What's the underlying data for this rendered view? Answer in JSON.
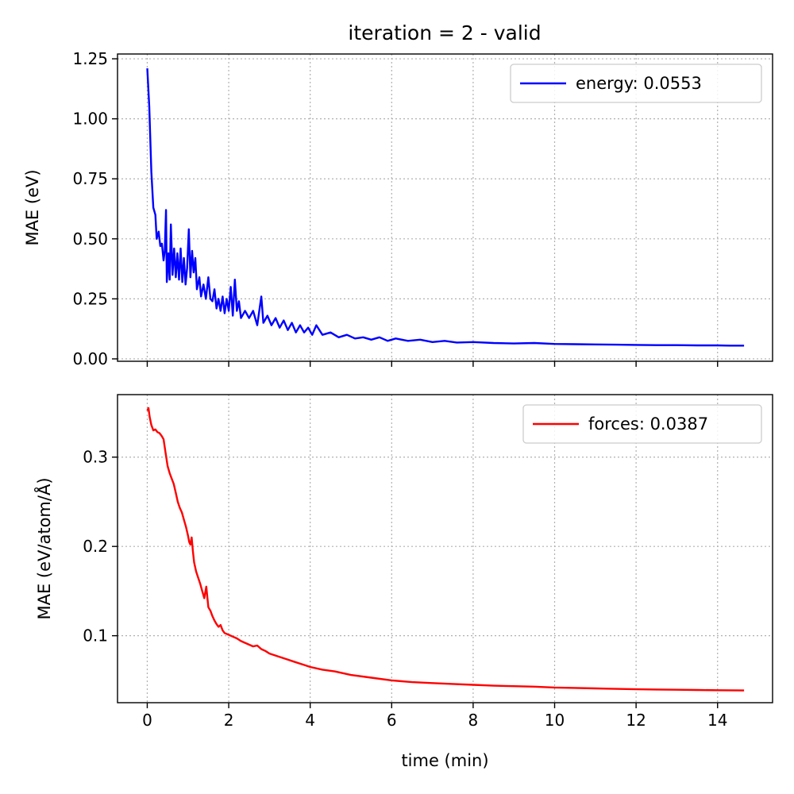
{
  "title": "iteration = 2 - valid",
  "chart_data": [
    {
      "type": "line",
      "title": "iteration = 2 - valid",
      "xlabel": "",
      "ylabel": "MAE (eV)",
      "xlim": [
        -0.73,
        15.35
      ],
      "ylim": [
        -0.01,
        1.27
      ],
      "xticks": [
        0,
        2,
        4,
        6,
        8,
        10,
        12,
        14
      ],
      "xtick_labels": [],
      "yticks": [
        0.0,
        0.25,
        0.5,
        0.75,
        1.0,
        1.25
      ],
      "ytick_labels": [
        "0.00",
        "0.25",
        "0.50",
        "0.75",
        "1.00",
        "1.25"
      ],
      "grid": true,
      "legend_loc": "upper right",
      "series": [
        {
          "name": "energy: 0.0553",
          "color": "#0000ff",
          "points": [
            [
              0.0,
              1.21
            ],
            [
              0.05,
              1.05
            ],
            [
              0.1,
              0.78
            ],
            [
              0.15,
              0.63
            ],
            [
              0.2,
              0.6
            ],
            [
              0.23,
              0.5
            ],
            [
              0.28,
              0.53
            ],
            [
              0.32,
              0.47
            ],
            [
              0.36,
              0.48
            ],
            [
              0.4,
              0.41
            ],
            [
              0.43,
              0.45
            ],
            [
              0.46,
              0.62
            ],
            [
              0.48,
              0.32
            ],
            [
              0.52,
              0.44
            ],
            [
              0.55,
              0.33
            ],
            [
              0.58,
              0.56
            ],
            [
              0.62,
              0.35
            ],
            [
              0.66,
              0.46
            ],
            [
              0.7,
              0.34
            ],
            [
              0.74,
              0.44
            ],
            [
              0.78,
              0.33
            ],
            [
              0.82,
              0.46
            ],
            [
              0.86,
              0.32
            ],
            [
              0.9,
              0.42
            ],
            [
              0.94,
              0.31
            ],
            [
              0.98,
              0.38
            ],
            [
              1.02,
              0.54
            ],
            [
              1.06,
              0.34
            ],
            [
              1.1,
              0.45
            ],
            [
              1.14,
              0.36
            ],
            [
              1.18,
              0.42
            ],
            [
              1.22,
              0.29
            ],
            [
              1.28,
              0.34
            ],
            [
              1.32,
              0.26
            ],
            [
              1.38,
              0.31
            ],
            [
              1.44,
              0.25
            ],
            [
              1.5,
              0.34
            ],
            [
              1.55,
              0.25
            ],
            [
              1.6,
              0.24
            ],
            [
              1.65,
              0.29
            ],
            [
              1.7,
              0.21
            ],
            [
              1.75,
              0.25
            ],
            [
              1.8,
              0.2
            ],
            [
              1.85,
              0.26
            ],
            [
              1.9,
              0.19
            ],
            [
              1.95,
              0.25
            ],
            [
              2.0,
              0.2
            ],
            [
              2.05,
              0.3
            ],
            [
              2.1,
              0.18
            ],
            [
              2.15,
              0.33
            ],
            [
              2.2,
              0.2
            ],
            [
              2.25,
              0.24
            ],
            [
              2.3,
              0.17
            ],
            [
              2.4,
              0.2
            ],
            [
              2.5,
              0.17
            ],
            [
              2.6,
              0.2
            ],
            [
              2.7,
              0.14
            ],
            [
              2.8,
              0.26
            ],
            [
              2.85,
              0.15
            ],
            [
              2.95,
              0.18
            ],
            [
              3.05,
              0.14
            ],
            [
              3.15,
              0.17
            ],
            [
              3.25,
              0.13
            ],
            [
              3.35,
              0.16
            ],
            [
              3.45,
              0.12
            ],
            [
              3.55,
              0.15
            ],
            [
              3.65,
              0.11
            ],
            [
              3.75,
              0.14
            ],
            [
              3.85,
              0.11
            ],
            [
              3.95,
              0.13
            ],
            [
              4.05,
              0.1
            ],
            [
              4.15,
              0.14
            ],
            [
              4.3,
              0.1
            ],
            [
              4.5,
              0.11
            ],
            [
              4.7,
              0.09
            ],
            [
              4.9,
              0.1
            ],
            [
              5.1,
              0.085
            ],
            [
              5.3,
              0.09
            ],
            [
              5.5,
              0.08
            ],
            [
              5.7,
              0.09
            ],
            [
              5.9,
              0.075
            ],
            [
              6.1,
              0.085
            ],
            [
              6.4,
              0.075
            ],
            [
              6.7,
              0.08
            ],
            [
              7.0,
              0.07
            ],
            [
              7.3,
              0.075
            ],
            [
              7.6,
              0.068
            ],
            [
              8.0,
              0.07
            ],
            [
              8.5,
              0.066
            ],
            [
              9.0,
              0.064
            ],
            [
              9.5,
              0.066
            ],
            [
              10.0,
              0.062
            ],
            [
              10.5,
              0.061
            ],
            [
              11.0,
              0.06
            ],
            [
              11.5,
              0.059
            ],
            [
              12.0,
              0.058
            ],
            [
              12.5,
              0.057
            ],
            [
              13.0,
              0.057
            ],
            [
              13.5,
              0.056
            ],
            [
              14.0,
              0.056
            ],
            [
              14.3,
              0.055
            ],
            [
              14.65,
              0.0553
            ]
          ]
        }
      ]
    },
    {
      "type": "line",
      "title": "",
      "xlabel": "time (min)",
      "ylabel": "MAE (eV/atom/Å)",
      "xlim": [
        -0.73,
        15.35
      ],
      "ylim": [
        0.025,
        0.37
      ],
      "xticks": [
        0,
        2,
        4,
        6,
        8,
        10,
        12,
        14
      ],
      "xtick_labels": [
        "0",
        "2",
        "4",
        "6",
        "8",
        "10",
        "12",
        "14"
      ],
      "yticks": [
        0.1,
        0.2,
        0.3
      ],
      "ytick_labels": [
        "0.1",
        "0.2",
        "0.3"
      ],
      "grid": true,
      "legend_loc": "upper right",
      "series": [
        {
          "name": "forces: 0.0387",
          "color": "#ff0000",
          "points": [
            [
              0.0,
              0.352
            ],
            [
              0.03,
              0.355
            ],
            [
              0.06,
              0.345
            ],
            [
              0.1,
              0.336
            ],
            [
              0.15,
              0.33
            ],
            [
              0.2,
              0.331
            ],
            [
              0.25,
              0.328
            ],
            [
              0.3,
              0.327
            ],
            [
              0.35,
              0.324
            ],
            [
              0.4,
              0.32
            ],
            [
              0.45,
              0.305
            ],
            [
              0.5,
              0.29
            ],
            [
              0.55,
              0.282
            ],
            [
              0.6,
              0.276
            ],
            [
              0.65,
              0.27
            ],
            [
              0.7,
              0.26
            ],
            [
              0.75,
              0.25
            ],
            [
              0.8,
              0.243
            ],
            [
              0.85,
              0.238
            ],
            [
              0.9,
              0.23
            ],
            [
              0.95,
              0.222
            ],
            [
              1.0,
              0.212
            ],
            [
              1.03,
              0.205
            ],
            [
              1.06,
              0.202
            ],
            [
              1.09,
              0.21
            ],
            [
              1.12,
              0.195
            ],
            [
              1.15,
              0.182
            ],
            [
              1.2,
              0.172
            ],
            [
              1.25,
              0.165
            ],
            [
              1.3,
              0.158
            ],
            [
              1.35,
              0.15
            ],
            [
              1.4,
              0.142
            ],
            [
              1.45,
              0.155
            ],
            [
              1.5,
              0.132
            ],
            [
              1.55,
              0.128
            ],
            [
              1.6,
              0.122
            ],
            [
              1.65,
              0.117
            ],
            [
              1.7,
              0.113
            ],
            [
              1.75,
              0.11
            ],
            [
              1.8,
              0.112
            ],
            [
              1.85,
              0.106
            ],
            [
              1.9,
              0.103
            ],
            [
              2.0,
              0.101
            ],
            [
              2.1,
              0.099
            ],
            [
              2.2,
              0.097
            ],
            [
              2.3,
              0.094
            ],
            [
              2.4,
              0.092
            ],
            [
              2.5,
              0.09
            ],
            [
              2.6,
              0.088
            ],
            [
              2.7,
              0.089
            ],
            [
              2.8,
              0.085
            ],
            [
              2.9,
              0.083
            ],
            [
              3.0,
              0.08
            ],
            [
              3.2,
              0.077
            ],
            [
              3.4,
              0.074
            ],
            [
              3.6,
              0.071
            ],
            [
              3.8,
              0.068
            ],
            [
              4.0,
              0.065
            ],
            [
              4.3,
              0.062
            ],
            [
              4.6,
              0.06
            ],
            [
              5.0,
              0.056
            ],
            [
              5.5,
              0.053
            ],
            [
              6.0,
              0.05
            ],
            [
              6.5,
              0.048
            ],
            [
              7.0,
              0.047
            ],
            [
              7.5,
              0.046
            ],
            [
              8.0,
              0.045
            ],
            [
              8.5,
              0.044
            ],
            [
              9.0,
              0.0435
            ],
            [
              9.5,
              0.043
            ],
            [
              10.0,
              0.042
            ],
            [
              10.5,
              0.0415
            ],
            [
              11.0,
              0.041
            ],
            [
              11.5,
              0.0405
            ],
            [
              12.0,
              0.04
            ],
            [
              12.5,
              0.0398
            ],
            [
              13.0,
              0.0395
            ],
            [
              13.5,
              0.0392
            ],
            [
              14.0,
              0.039
            ],
            [
              14.65,
              0.0387
            ]
          ]
        }
      ]
    }
  ]
}
